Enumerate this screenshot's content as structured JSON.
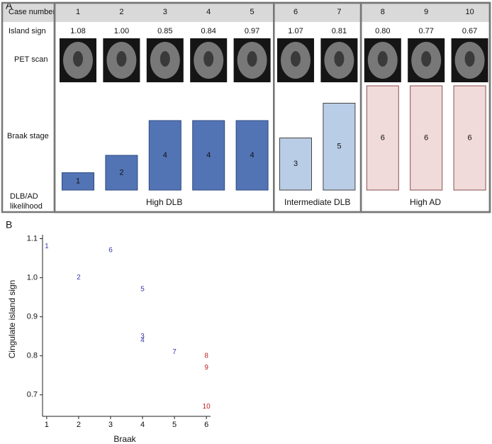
{
  "chart_data": [
    {
      "type": "bar",
      "panel_label": "A",
      "row_labels": [
        "Case number",
        "Island sign",
        "PET scan",
        "Braak stage",
        "DLB/AD likelihood"
      ],
      "categories": [
        "1",
        "2",
        "3",
        "4",
        "5",
        "6",
        "7",
        "8",
        "9",
        "10"
      ],
      "island_sign": {
        "values": [
          1.08,
          1.0,
          0.85,
          0.84,
          0.97,
          1.07,
          0.81,
          0.8,
          0.77,
          0.67
        ],
        "value_labels": [
          "1.08",
          "1.00",
          "0.85",
          "0.84",
          "0.97",
          "1.07",
          "0.81",
          "0.80",
          "0.77",
          "0.67"
        ]
      },
      "series": [
        {
          "name": "High DLB",
          "color": "#5274b5",
          "values": [
            1,
            2,
            4,
            4,
            4,
            null,
            null,
            null,
            null,
            null
          ]
        },
        {
          "name": "Intermediate DLB",
          "color": "#b9cde6",
          "values": [
            null,
            null,
            null,
            null,
            null,
            3,
            5,
            null,
            null,
            null
          ]
        },
        {
          "name": "High AD",
          "color": "#f1dada",
          "values": [
            null,
            null,
            null,
            null,
            null,
            null,
            null,
            6,
            6,
            6
          ]
        }
      ]
    },
    {
      "type": "scatter",
      "panel_label": "B",
      "x_label": "Braak",
      "y_label": "Cingulate island sign",
      "x": [
        1,
        2,
        4,
        4,
        4,
        3,
        5,
        6,
        6,
        6
      ],
      "values": [
        1.08,
        1.0,
        0.85,
        0.84,
        0.97,
        1.07,
        0.81,
        0.8,
        0.77,
        0.67
      ],
      "point_labels": [
        "1",
        "2",
        "3",
        "4",
        "5",
        "6",
        "7",
        "8",
        "9",
        "10"
      ],
      "point_colors": [
        "#3a3aa8",
        "#3a3aa8",
        "#3a3aa8",
        "#3a3aa8",
        "#3a3aa8",
        "#3a3aa8",
        "#3a3aa8",
        "#c02020",
        "#c02020",
        "#c02020"
      ],
      "xlim": [
        0.87,
        6.13
      ],
      "ylim": [
        0.645,
        1.11
      ],
      "xticks": [
        1,
        2,
        3,
        4,
        5,
        6
      ],
      "yticks": [
        0.7,
        0.8,
        0.9,
        {
          "value": 1.0,
          "label": "1.0"
        },
        1.1
      ]
    }
  ]
}
